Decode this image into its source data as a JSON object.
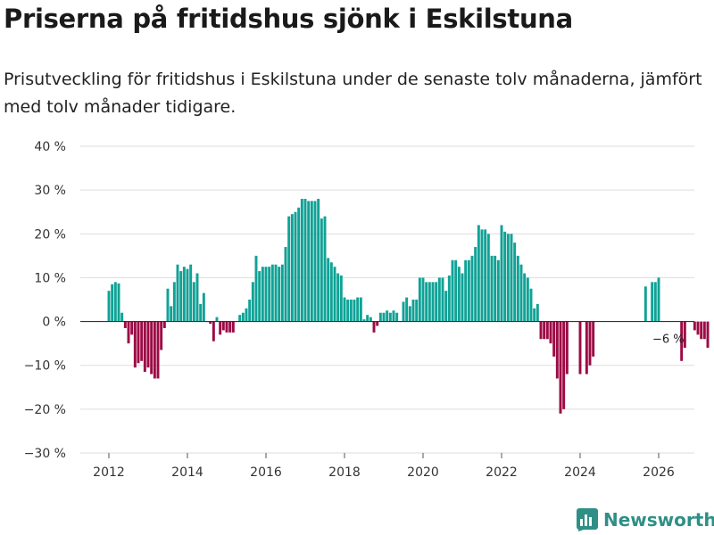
{
  "title": "Priserna på fritidshus sjönk i Eskilstuna",
  "subtitle": "Prisutveckling för fritidshus i Eskilstuna under de senaste tolv månaderna, jämfört med tolv månader tidigare.",
  "brand": "Newsworthy",
  "colors": {
    "positive": "#10a296",
    "negative": "#9c0a45",
    "grid": "#dddddd",
    "zero": "#333333"
  },
  "chart_data": {
    "type": "bar",
    "title": "Priserna på fritidshus sjönk i Eskilstuna",
    "xlabel": "",
    "ylabel": "",
    "ylim": [
      -30,
      40
    ],
    "y_ticks": [
      40,
      30,
      20,
      10,
      0,
      -10,
      -20,
      -30
    ],
    "y_tick_labels": [
      "40 %",
      "30 %",
      "20 %",
      "10 %",
      "0 %",
      "−10 %",
      "−20 %",
      "−30 %"
    ],
    "x_ticks": [
      2012,
      2014,
      2016,
      2018,
      2020,
      2022,
      2024,
      2026
    ],
    "x_tick_labels": [
      "2012",
      "2014",
      "2016",
      "2018",
      "2020",
      "2022",
      "2024",
      "2026"
    ],
    "x_range": [
      2011.6,
      2026.8
    ],
    "start_month": "2012-01",
    "unit": "%",
    "values": [
      7,
      8.5,
      9,
      8.7,
      2,
      -1.5,
      -5,
      -3,
      -10.5,
      -9.5,
      -9,
      -11.5,
      -10.5,
      -12,
      -13,
      -13,
      -6.5,
      -1.5,
      7.5,
      3.5,
      9,
      13,
      11.5,
      12.5,
      12,
      13,
      9,
      11,
      4,
      6.5,
      0,
      -0.5,
      -4.5,
      1,
      -3,
      -2,
      -2.5,
      -2.5,
      -2.5,
      0,
      1.5,
      2,
      3,
      5,
      9,
      15,
      11.5,
      12.5,
      12.5,
      12.5,
      13,
      13,
      12.5,
      13,
      17,
      24,
      24.5,
      25,
      26,
      28,
      28,
      27.5,
      27.5,
      27.5,
      28,
      23.5,
      24,
      14.5,
      13.5,
      12.5,
      11,
      10.5,
      5.5,
      5,
      5,
      5,
      5.5,
      5.5,
      0.5,
      1.5,
      1,
      -2.5,
      -1,
      2,
      2,
      2.5,
      2,
      2.5,
      2,
      0,
      4.5,
      5.5,
      3.5,
      5,
      5,
      10,
      10,
      9,
      9,
      9,
      9,
      10,
      10,
      7,
      10.5,
      14,
      14,
      12.5,
      11,
      14,
      14,
      15,
      17,
      22,
      21,
      21,
      20,
      15,
      15,
      14,
      22,
      20.5,
      20,
      20,
      18,
      15,
      13,
      11,
      10,
      7.5,
      3,
      4,
      -4,
      -4,
      -4,
      -5,
      -8,
      -13,
      -21,
      -20,
      -12,
      null,
      null,
      null,
      -12,
      null,
      -12,
      -10,
      -8,
      null,
      null,
      null,
      null,
      null,
      null,
      null,
      null,
      null,
      null,
      null,
      null,
      null,
      null,
      null,
      8,
      null,
      9,
      9,
      10,
      null,
      null,
      null,
      null,
      null,
      null,
      -9,
      -6,
      null,
      null,
      -2,
      -3,
      -4,
      -4,
      -6
    ],
    "annotations": [
      {
        "month_index": 171,
        "label": "−6 %"
      }
    ]
  }
}
